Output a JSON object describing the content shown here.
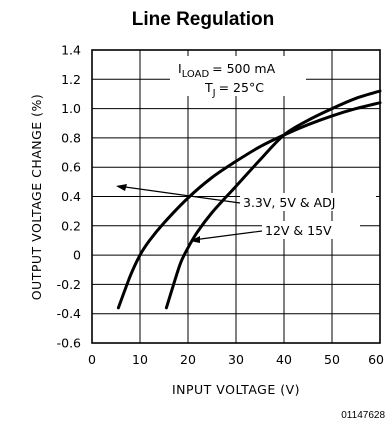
{
  "chart_data": {
    "type": "line",
    "title": "Line Regulation",
    "xlabel": "INPUT VOLTAGE (V)",
    "ylabel": "OUTPUT VOLTAGE CHANGE (%)",
    "xlim": [
      0,
      60
    ],
    "ylim": [
      -0.6,
      1.4
    ],
    "x_ticks": [
      "0",
      "10",
      "20",
      "30",
      "40",
      "50",
      "60"
    ],
    "y_ticks": [
      "1.4",
      "1.2",
      "1.0",
      "0.8",
      "0.6",
      "0.4",
      "0.2",
      "0",
      "-0.2",
      "-0.4",
      "-0.6"
    ],
    "grid": true,
    "conditions": {
      "load_text": "= 500 mA",
      "load_symbol": "I",
      "load_sub": "LOAD",
      "tj_text": "= 25°C",
      "tj_symbol": "T",
      "tj_sub": "J"
    },
    "series": [
      {
        "name": "3.3V, 5V & ADJ",
        "x": [
          5.5,
          8,
          10,
          12,
          15,
          20,
          25,
          30,
          35,
          40,
          45,
          50,
          55,
          60
        ],
        "y": [
          -0.36,
          -0.14,
          0.0,
          0.1,
          0.22,
          0.39,
          0.53,
          0.64,
          0.74,
          0.82,
          0.89,
          0.95,
          1.0,
          1.04
        ]
      },
      {
        "name": "12V & 15V",
        "x": [
          15.5,
          17,
          18.5,
          20,
          22,
          25,
          30,
          35,
          40,
          45,
          50,
          55,
          60
        ],
        "y": [
          -0.36,
          -0.2,
          -0.05,
          0.05,
          0.16,
          0.29,
          0.47,
          0.65,
          0.82,
          0.92,
          1.0,
          1.07,
          1.12
        ]
      }
    ],
    "figure_code": "01147628"
  }
}
